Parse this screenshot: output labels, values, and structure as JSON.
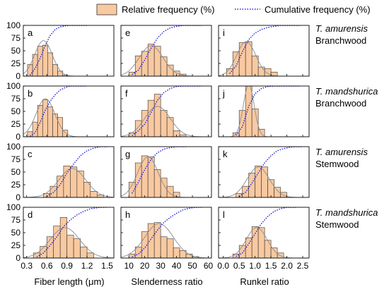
{
  "legend": {
    "relative_label": "Relative frequency (%)",
    "cumulative_label": "Cumulative frequency (%)"
  },
  "colors": {
    "bar_fill": "#f9c9a0",
    "bar_stroke": "#333333",
    "cumulative_line": "#1f1fd6",
    "normal_curve": "#8c8c8c"
  },
  "row_labels": [
    {
      "species": "T. amurensis",
      "tissue": "Branchwood"
    },
    {
      "species": "T. mandshurica",
      "tissue": "Branchwood"
    },
    {
      "species": "T. amurensis",
      "tissue": "Stemwood"
    },
    {
      "species": "T. mandshurica",
      "tissue": "Stemwood"
    }
  ],
  "column_xlabels": [
    "Fiber length (μm)",
    "Slenderness ratio",
    "Runkel ratio"
  ],
  "chart_data": [
    {
      "type": "bar",
      "panel": "a",
      "xlabel": "Fiber length (μm)",
      "ylim": [
        0,
        100
      ],
      "xticks": [
        0.3,
        0.6,
        0.9,
        1.2,
        1.5
      ],
      "xlim": [
        0.25,
        1.6
      ],
      "bins": [
        0.35,
        0.425,
        0.5,
        0.575,
        0.65,
        0.725,
        0.8,
        0.875
      ],
      "bin_width": 0.075,
      "values": [
        23,
        43,
        59,
        61,
        46,
        23,
        10,
        2
      ],
      "cumulative_x": [
        0.35,
        0.425,
        0.5,
        0.575,
        0.65,
        0.725,
        0.8,
        0.875,
        0.95,
        1.05,
        1.2
      ],
      "cumulative_y": [
        2,
        15,
        35,
        60,
        80,
        92,
        97,
        99,
        100,
        100,
        100
      ],
      "normal": {
        "mean": 0.55,
        "sd": 0.13,
        "peak": 70
      }
    },
    {
      "type": "bar",
      "panel": "b",
      "xlabel": "Fiber length (μm)",
      "ylim": [
        0,
        100
      ],
      "xticks": [
        0.3,
        0.6,
        0.9,
        1.2,
        1.5
      ],
      "xlim": [
        0.25,
        1.6
      ],
      "bins": [
        0.35,
        0.425,
        0.5,
        0.575,
        0.65,
        0.725,
        0.8,
        0.875
      ],
      "bin_width": 0.075,
      "values": [
        10,
        29,
        62,
        73,
        59,
        45,
        38,
        13
      ],
      "cumulative_x": [
        0.35,
        0.425,
        0.5,
        0.575,
        0.65,
        0.725,
        0.8,
        0.875,
        0.95,
        1.05,
        1.2
      ],
      "cumulative_y": [
        1,
        8,
        28,
        52,
        70,
        83,
        92,
        97,
        100,
        100,
        100
      ],
      "normal": {
        "mean": 0.58,
        "sd": 0.14,
        "peak": 75
      }
    },
    {
      "type": "bar",
      "panel": "c",
      "xlabel": "Fiber length (μm)",
      "ylim": [
        0,
        100
      ],
      "xticks": [
        0.3,
        0.6,
        0.9,
        1.2,
        1.5
      ],
      "xlim": [
        0.25,
        1.6
      ],
      "bins": [
        0.6,
        0.7,
        0.8,
        0.9,
        1.0,
        1.1,
        1.2,
        1.3,
        1.4
      ],
      "bin_width": 0.1,
      "values": [
        8,
        22,
        42,
        62,
        60,
        52,
        30,
        12,
        5
      ],
      "cumulative_x": [
        0.6,
        0.7,
        0.8,
        0.9,
        1.0,
        1.1,
        1.2,
        1.3,
        1.4,
        1.5
      ],
      "cumulative_y": [
        2,
        10,
        25,
        48,
        66,
        82,
        92,
        97,
        100,
        100
      ],
      "normal": {
        "mean": 0.98,
        "sd": 0.2,
        "peak": 57
      }
    },
    {
      "type": "bar",
      "panel": "d",
      "xlabel": "Fiber length (μm)",
      "ylim": [
        0,
        100
      ],
      "xticks": [
        0.3,
        0.6,
        0.9,
        1.2,
        1.5
      ],
      "xlim": [
        0.25,
        1.6
      ],
      "bins": [
        0.45,
        0.55,
        0.65,
        0.75,
        0.85,
        0.95,
        1.05,
        1.15,
        1.25
      ],
      "bin_width": 0.1,
      "values": [
        10,
        23,
        42,
        63,
        80,
        45,
        38,
        22,
        10
      ],
      "cumulative_x": [
        0.45,
        0.55,
        0.65,
        0.75,
        0.85,
        0.95,
        1.05,
        1.15,
        1.25,
        1.4,
        1.5
      ],
      "cumulative_y": [
        2,
        10,
        25,
        42,
        62,
        75,
        85,
        92,
        97,
        100,
        100
      ],
      "normal": {
        "mean": 0.87,
        "sd": 0.22,
        "peak": 60
      }
    },
    {
      "type": "bar",
      "panel": "e",
      "xlabel": "Slenderness ratio",
      "ylim": [
        0,
        100
      ],
      "xticks": [
        10,
        20,
        30,
        40,
        50,
        60
      ],
      "xlim": [
        5,
        62
      ],
      "bins": [
        12,
        16,
        20,
        24,
        28,
        32,
        36,
        40,
        44
      ],
      "bin_width": 4,
      "values": [
        8,
        40,
        49,
        63,
        59,
        38,
        22,
        10,
        4
      ],
      "cumulative_x": [
        12,
        16,
        20,
        24,
        28,
        32,
        36,
        40,
        44,
        50,
        56
      ],
      "cumulative_y": [
        3,
        12,
        32,
        55,
        75,
        88,
        95,
        98,
        100,
        100,
        100
      ],
      "normal": {
        "mean": 24,
        "sd": 7.5,
        "peak": 60
      }
    },
    {
      "type": "bar",
      "panel": "f",
      "xlabel": "Slenderness ratio",
      "ylim": [
        0,
        100
      ],
      "xticks": [
        10,
        20,
        30,
        40,
        50,
        60
      ],
      "xlim": [
        5,
        62
      ],
      "bins": [
        12,
        16,
        20,
        24,
        28,
        32,
        36,
        40,
        44
      ],
      "bin_width": 4,
      "values": [
        8,
        32,
        52,
        72,
        84,
        52,
        38,
        12,
        4
      ],
      "cumulative_x": [
        12,
        16,
        20,
        24,
        28,
        32,
        36,
        40,
        44,
        50,
        56
      ],
      "cumulative_y": [
        2,
        12,
        25,
        48,
        72,
        87,
        95,
        99,
        100,
        100,
        100
      ],
      "normal": {
        "mean": 28,
        "sd": 8,
        "peak": 60
      }
    },
    {
      "type": "bar",
      "panel": "g",
      "xlabel": "Slenderness ratio",
      "ylim": [
        0,
        100
      ],
      "xticks": [
        10,
        20,
        30,
        40,
        50,
        60
      ],
      "xlim": [
        5,
        62
      ],
      "bins": [
        12,
        16,
        20,
        24,
        28,
        32,
        36,
        40
      ],
      "bin_width": 4,
      "values": [
        30,
        68,
        82,
        80,
        55,
        38,
        22,
        10
      ],
      "cumulative_x": [
        12,
        16,
        20,
        24,
        28,
        32,
        36,
        40,
        46
      ],
      "cumulative_y": [
        8,
        30,
        55,
        75,
        88,
        95,
        98,
        100,
        100
      ],
      "normal": {
        "mean": 22,
        "sd": 6.5,
        "peak": 80
      }
    },
    {
      "type": "bar",
      "panel": "h",
      "xlabel": "Slenderness ratio",
      "ylim": [
        0,
        100
      ],
      "xticks": [
        10,
        20,
        30,
        40,
        50,
        60
      ],
      "xlim": [
        5,
        62
      ],
      "bins": [
        12,
        16,
        20,
        24,
        28,
        32,
        36,
        40,
        44,
        48,
        52
      ],
      "bin_width": 4,
      "values": [
        8,
        22,
        52,
        68,
        70,
        42,
        38,
        20,
        15,
        8,
        3
      ],
      "cumulative_x": [
        12,
        16,
        20,
        24,
        28,
        32,
        36,
        40,
        44,
        48,
        52,
        56
      ],
      "cumulative_y": [
        2,
        8,
        20,
        38,
        55,
        70,
        80,
        88,
        95,
        98,
        100,
        100
      ],
      "normal": {
        "mean": 29,
        "sd": 9,
        "peak": 68
      }
    },
    {
      "type": "bar",
      "panel": "i",
      "xlabel": "Runkel ratio",
      "ylim": [
        0,
        100
      ],
      "xticks": [
        0.0,
        0.5,
        1.0,
        1.5,
        2.0,
        2.5
      ],
      "xlim": [
        -0.15,
        2.7
      ],
      "bins": [
        0.2,
        0.4,
        0.6,
        0.8,
        1.0,
        1.2,
        1.4,
        1.6
      ],
      "bin_width": 0.2,
      "values": [
        15,
        48,
        66,
        68,
        40,
        18,
        15,
        8
      ],
      "cumulative_x": [
        0.2,
        0.4,
        0.6,
        0.8,
        1.0,
        1.2,
        1.4,
        1.6,
        1.8,
        2.1,
        2.4
      ],
      "cumulative_y": [
        5,
        20,
        48,
        72,
        85,
        92,
        96,
        98,
        100,
        100,
        100
      ],
      "normal": {
        "mean": 0.72,
        "sd": 0.3,
        "peak": 68
      }
    },
    {
      "type": "bar",
      "panel": "j",
      "xlabel": "Runkel ratio",
      "ylim": [
        0,
        100
      ],
      "xticks": [
        0.0,
        0.5,
        1.0,
        1.5,
        2.0,
        2.5
      ],
      "xlim": [
        -0.15,
        2.7
      ],
      "bins": [
        0.4,
        0.6,
        0.8,
        1.0,
        1.2
      ],
      "bin_width": 0.2,
      "values": [
        8,
        52,
        100,
        55,
        15
      ],
      "cumulative_x": [
        0.4,
        0.6,
        0.8,
        1.0,
        1.2,
        1.4,
        1.6,
        1.8,
        2.1,
        2.4
      ],
      "cumulative_y": [
        3,
        20,
        60,
        85,
        95,
        99,
        100,
        100,
        100,
        100
      ],
      "normal": {
        "mean": 0.8,
        "sd": 0.17,
        "peak": 103
      }
    },
    {
      "type": "bar",
      "panel": "k",
      "xlabel": "Runkel ratio",
      "ylim": [
        0,
        100
      ],
      "xticks": [
        0.0,
        0.5,
        1.0,
        1.5,
        2.0,
        2.5
      ],
      "xlim": [
        -0.15,
        2.7
      ],
      "bins": [
        0.5,
        0.7,
        0.9,
        1.1,
        1.3,
        1.5,
        1.7,
        1.9
      ],
      "bin_width": 0.2,
      "values": [
        8,
        22,
        48,
        62,
        60,
        35,
        20,
        10
      ],
      "cumulative_x": [
        0.5,
        0.7,
        0.9,
        1.1,
        1.3,
        1.5,
        1.7,
        1.9,
        2.1,
        2.3,
        2.5
      ],
      "cumulative_y": [
        2,
        10,
        28,
        48,
        68,
        82,
        92,
        96,
        99,
        100,
        100
      ],
      "normal": {
        "mean": 1.1,
        "sd": 0.35,
        "peak": 60
      }
    },
    {
      "type": "bar",
      "panel": "l",
      "xlabel": "Runkel ratio",
      "ylim": [
        0,
        100
      ],
      "xticks": [
        0.0,
        0.5,
        1.0,
        1.5,
        2.0,
        2.5
      ],
      "xlim": [
        -0.15,
        2.7
      ],
      "bins": [
        0.4,
        0.6,
        0.8,
        1.0,
        1.2,
        1.4,
        1.6,
        1.8
      ],
      "bin_width": 0.2,
      "values": [
        8,
        25,
        40,
        62,
        60,
        35,
        20,
        10
      ],
      "cumulative_x": [
        0.4,
        0.6,
        0.8,
        1.0,
        1.2,
        1.4,
        1.6,
        1.8,
        2.0,
        2.3
      ],
      "cumulative_y": [
        3,
        10,
        28,
        48,
        68,
        82,
        92,
        97,
        100,
        100
      ],
      "normal": {
        "mean": 1.05,
        "sd": 0.33,
        "peak": 60
      }
    }
  ]
}
